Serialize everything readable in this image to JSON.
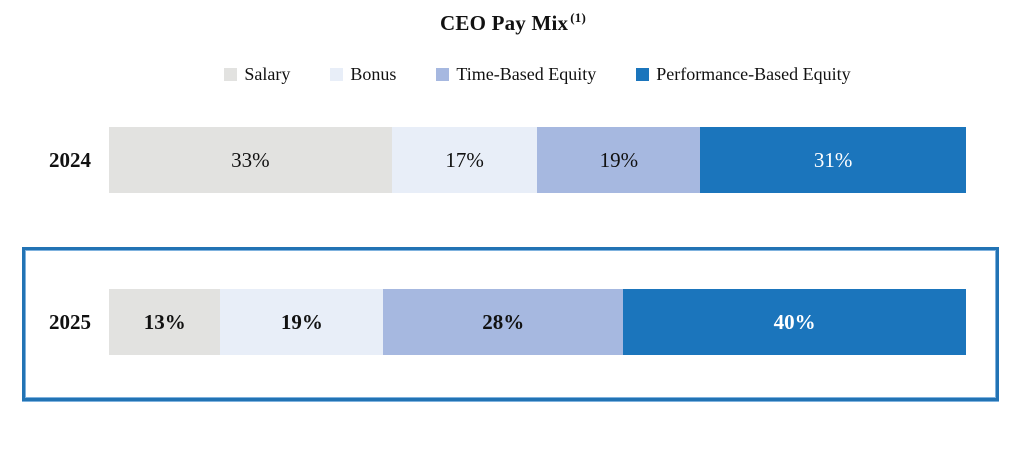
{
  "title": {
    "text": "CEO Pay Mix",
    "superscript": "(1)"
  },
  "colors": {
    "highlight_border": "#2273B4",
    "highlight_border_light": "#7FB2DE",
    "text": "#111111",
    "label_on_dark": "#FFFFFF"
  },
  "chart_data": {
    "type": "bar",
    "orientation": "horizontal",
    "stacked": true,
    "unit": "%",
    "xlim": [
      0,
      100
    ],
    "grid": false,
    "legend_position": "top-center",
    "title": "CEO Pay Mix (1)",
    "categories": [
      "2024",
      "2025"
    ],
    "series": [
      {
        "name": "Salary",
        "color": "#E2E2E0",
        "values": [
          33,
          13
        ]
      },
      {
        "name": "Bonus",
        "color": "#E8EEF8",
        "values": [
          17,
          19
        ]
      },
      {
        "name": "Time-Based Equity",
        "color": "#A6B8E0",
        "values": [
          19,
          28
        ]
      },
      {
        "name": "Performance-Based Equity",
        "color": "#1B75BC",
        "values": [
          31,
          40
        ]
      }
    ],
    "rows": [
      {
        "year": "2024",
        "highlighted": false,
        "segments": [
          {
            "series": "Salary",
            "value": 33,
            "label": "33%"
          },
          {
            "series": "Bonus",
            "value": 17,
            "label": "17%"
          },
          {
            "series": "Time-Based Equity",
            "value": 19,
            "label": "19%"
          },
          {
            "series": "Performance-Based Equity",
            "value": 31,
            "label": "31%"
          }
        ]
      },
      {
        "year": "2025",
        "highlighted": true,
        "segments": [
          {
            "series": "Salary",
            "value": 13,
            "label": "13%"
          },
          {
            "series": "Bonus",
            "value": 19,
            "label": "19%"
          },
          {
            "series": "Time-Based Equity",
            "value": 28,
            "label": "28%"
          },
          {
            "series": "Performance-Based Equity",
            "value": 40,
            "label": "40%"
          }
        ]
      }
    ]
  }
}
